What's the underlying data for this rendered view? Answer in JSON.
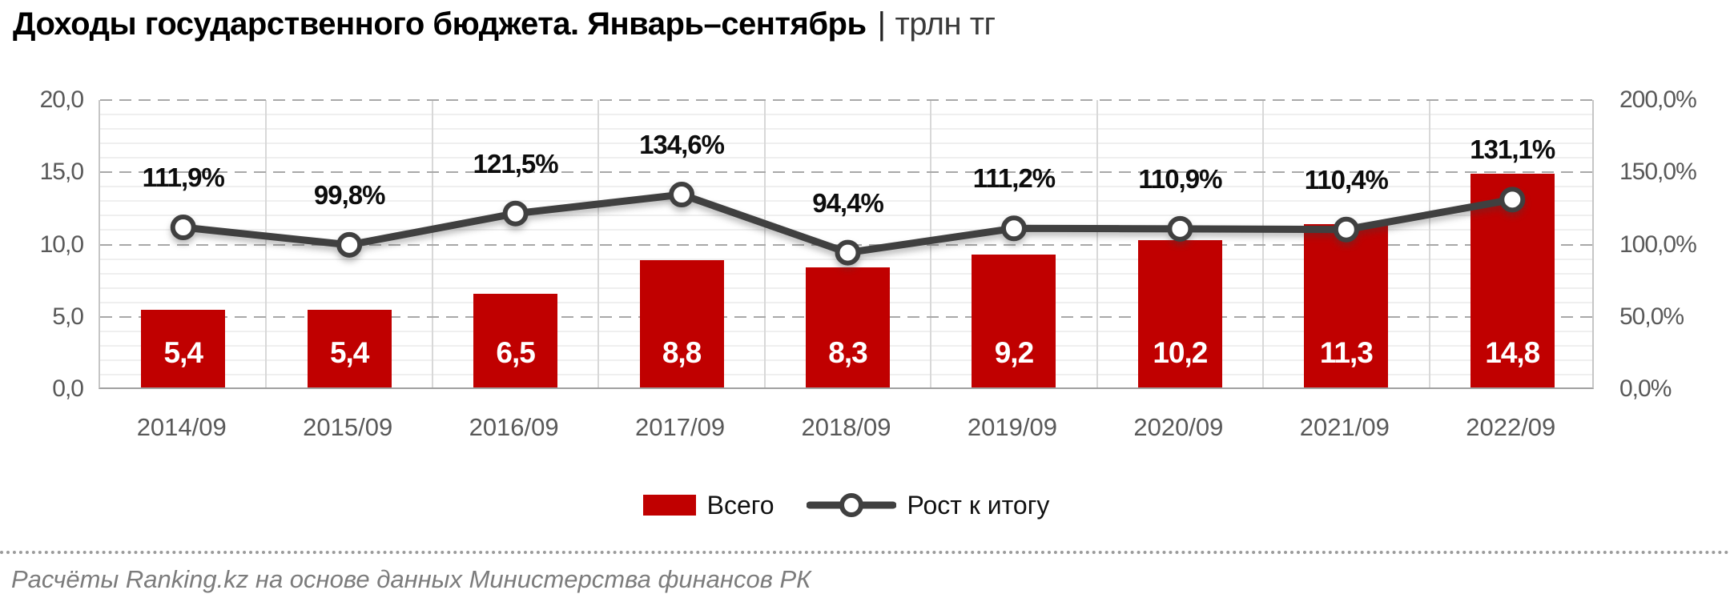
{
  "title": {
    "main": "Доходы государственного бюджета. Январь–сентябрь",
    "separator": "|",
    "unit": "трлн тг"
  },
  "chart_data": {
    "type": "bar+line",
    "categories": [
      "2014/09",
      "2015/09",
      "2016/09",
      "2017/09",
      "2018/09",
      "2019/09",
      "2020/09",
      "2021/09",
      "2022/09"
    ],
    "series": [
      {
        "name": "Всего",
        "type": "bar",
        "axis": "left",
        "color": "#C00000",
        "values": [
          5.4,
          5.4,
          6.5,
          8.8,
          8.3,
          9.2,
          10.2,
          11.3,
          14.8
        ],
        "labels": [
          "5,4",
          "5,4",
          "6,5",
          "8,8",
          "8,3",
          "9,2",
          "10,2",
          "11,3",
          "14,8"
        ]
      },
      {
        "name": "Рост к итогу",
        "type": "line",
        "axis": "right",
        "color": "#404040",
        "marker_fill": "#FFFFFF",
        "values": [
          111.9,
          99.8,
          121.5,
          134.6,
          94.4,
          111.2,
          110.9,
          110.4,
          131.1
        ],
        "labels": [
          "111,9%",
          "99,8%",
          "121,5%",
          "134,6%",
          "94,4%",
          "111,2%",
          "110,9%",
          "110,4%",
          "131,1%"
        ]
      }
    ],
    "left_axis": {
      "min": 0,
      "max": 20,
      "tick_values": [
        20,
        15,
        10,
        5,
        0
      ],
      "tick_labels": [
        "20,0",
        "15,0",
        "10,0",
        "5,0",
        "0,0"
      ]
    },
    "right_axis": {
      "min": 0,
      "max": 200,
      "tick_values": [
        200,
        150,
        100,
        50,
        0
      ],
      "tick_labels": [
        "200,0%",
        "150,0%",
        "100,0%",
        "50,0%",
        "0,0%"
      ]
    },
    "grid": {
      "horizontal_major": true,
      "horizontal_minor": true,
      "vertical": true
    },
    "legend_position": "bottom-center"
  },
  "legend": {
    "bar_label": "Всего",
    "line_label": "Рост к итогу"
  },
  "source": "Расчёты Ranking.kz на основе данных Министерства финансов РК"
}
